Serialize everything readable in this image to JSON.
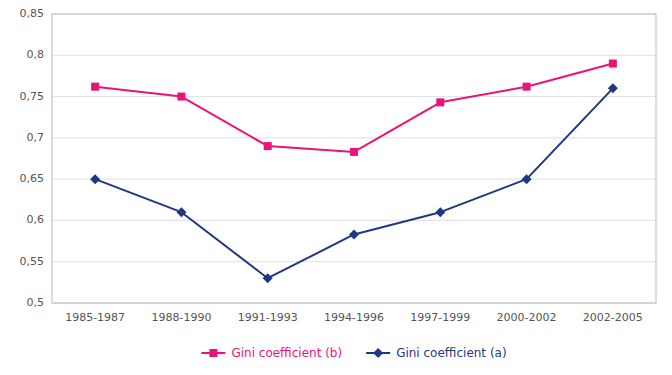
{
  "chart_data": {
    "type": "line",
    "categories": [
      "1985-1987",
      "1988-1990",
      "1991-1993",
      "1994-1996",
      "1997-1999",
      "2000-2002",
      "2002-2005"
    ],
    "series": [
      {
        "name": "Gini coefficient (b)",
        "color": "#E8147A",
        "marker": "square",
        "values": [
          0.762,
          0.75,
          0.69,
          0.683,
          0.743,
          0.762,
          0.79
        ]
      },
      {
        "name": "Gini coefficient (a)",
        "color": "#1F3882",
        "marker": "diamond",
        "values": [
          0.65,
          0.61,
          0.53,
          0.583,
          0.61,
          0.65,
          0.76
        ]
      }
    ],
    "ylim": [
      0.5,
      0.85
    ],
    "yticks": [
      {
        "value": 0.5,
        "label": "0,5"
      },
      {
        "value": 0.55,
        "label": "0,55"
      },
      {
        "value": 0.6,
        "label": "0,6"
      },
      {
        "value": 0.65,
        "label": "0,65"
      },
      {
        "value": 0.7,
        "label": "0,7"
      },
      {
        "value": 0.75,
        "label": "0,75"
      },
      {
        "value": 0.8,
        "label": "0,8"
      },
      {
        "value": 0.85,
        "label": "0,85"
      }
    ],
    "grid": true,
    "legend": "bottom"
  }
}
